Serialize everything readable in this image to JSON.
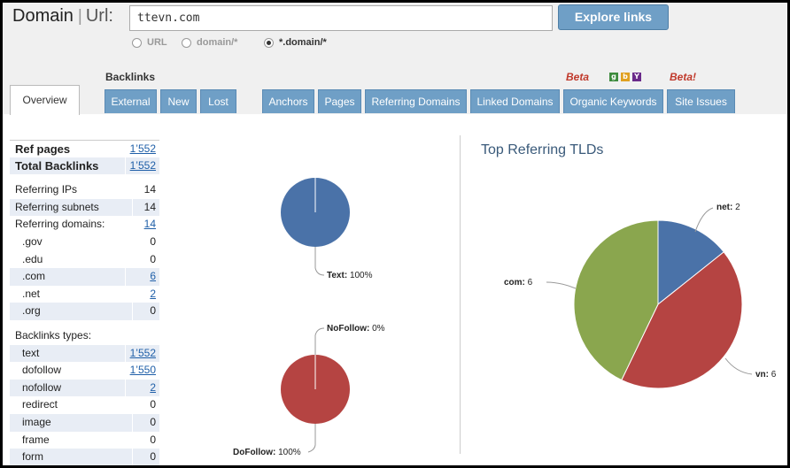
{
  "search": {
    "brand": "Domain",
    "brand_sep": "|",
    "brand_url": "Url:",
    "value": "ttevn.com",
    "button": "Explore links",
    "radio_options": [
      {
        "label": "URL",
        "checked": false
      },
      {
        "label": "domain/*",
        "checked": false
      },
      {
        "label": "*.domain/*",
        "checked": true
      }
    ]
  },
  "nav": {
    "backlinks_label": "Backlinks",
    "beta1": "Beta",
    "beta2": "Beta!",
    "engine_icons": [
      "google-icon",
      "bing-icon",
      "yahoo-icon"
    ],
    "overview_tab": "Overview",
    "tabs": [
      "External",
      "New",
      "Lost",
      "Anchors",
      "Pages",
      "Referring Domains",
      "Linked Domains",
      "Organic Keywords",
      "Site Issues"
    ]
  },
  "stats": {
    "ref_pages": {
      "label": "Ref pages",
      "value": "1’552"
    },
    "total_backlinks": {
      "label": "Total Backlinks",
      "value": "1’552"
    },
    "referring_ips": {
      "label": "Referring IPs",
      "value": "14"
    },
    "referring_subnets": {
      "label": "Referring subnets",
      "value": "14"
    },
    "referring_domains": {
      "label": "Referring domains:",
      "value": "14"
    },
    "gov": {
      "label": ".gov",
      "value": "0"
    },
    "edu": {
      "label": ".edu",
      "value": "0"
    },
    "com": {
      "label": ".com",
      "value": "6"
    },
    "net": {
      "label": ".net",
      "value": "2"
    },
    "org": {
      "label": ".org",
      "value": "0"
    },
    "backlink_types": "Backlinks types:",
    "text": {
      "label": "text",
      "value": "1’552"
    },
    "dofollow": {
      "label": "dofollow",
      "value": "1’550"
    },
    "nofollow": {
      "label": "nofollow",
      "value": "2"
    },
    "redirect": {
      "label": "redirect",
      "value": "0"
    },
    "image": {
      "label": "image",
      "value": "0"
    },
    "frame": {
      "label": "frame",
      "value": "0"
    },
    "form": {
      "label": "form",
      "value": "0"
    }
  },
  "colors": {
    "blue": "#4a72a8",
    "red": "#b54442",
    "green": "#8aa64e",
    "tab": "#6f9fc6"
  },
  "chart_data": [
    {
      "type": "pie",
      "title": "",
      "slices": [
        {
          "label": "Text",
          "value": 100,
          "display": "100%",
          "color": "#4a72a8"
        }
      ]
    },
    {
      "type": "pie",
      "title": "",
      "slices": [
        {
          "label": "NoFollow",
          "value": 0,
          "display": "0%",
          "color": "#4a72a8"
        },
        {
          "label": "DoFollow",
          "value": 100,
          "display": "100%",
          "color": "#b54442"
        }
      ]
    },
    {
      "type": "pie",
      "title": "Top Referring TLDs",
      "slices": [
        {
          "label": "net",
          "value": 2,
          "color": "#4a72a8"
        },
        {
          "label": "vn",
          "value": 6,
          "color": "#b54442"
        },
        {
          "label": "com",
          "value": 6,
          "color": "#8aa64e"
        }
      ]
    }
  ]
}
